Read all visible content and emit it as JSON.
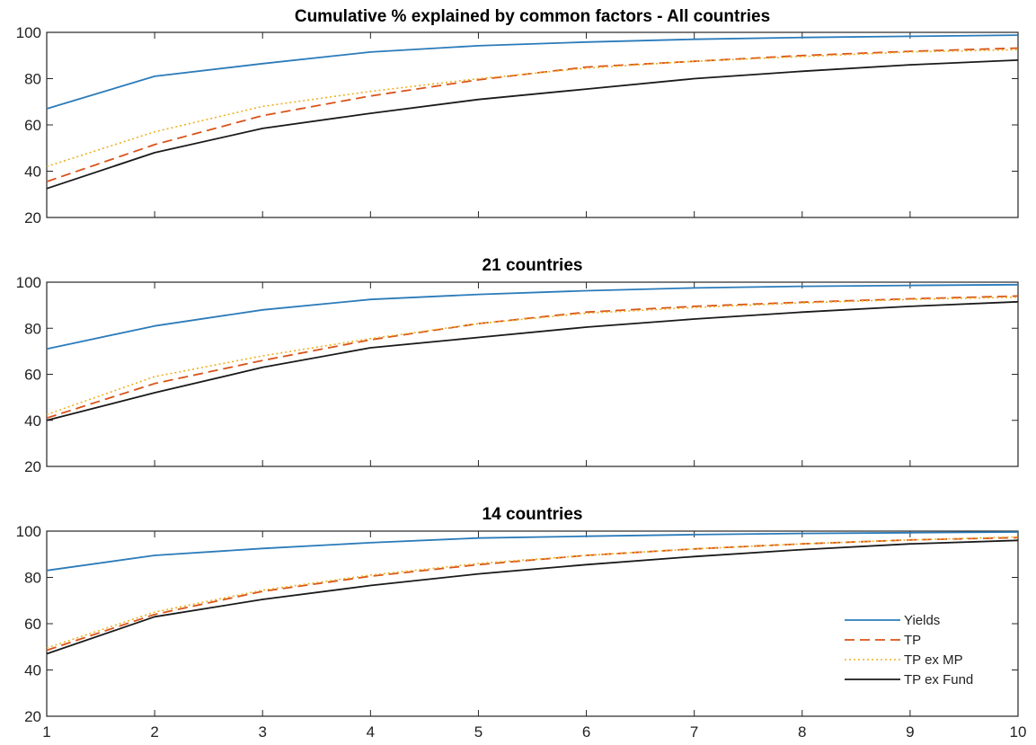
{
  "chart_data": [
    {
      "type": "line",
      "title": "Cumulative % explained by common factors - All countries",
      "x": [
        1,
        2,
        3,
        4,
        5,
        6,
        7,
        8,
        9,
        10
      ],
      "xlim": [
        1,
        10
      ],
      "ylim": [
        20,
        100
      ],
      "yticks": [
        20,
        40,
        60,
        80,
        100
      ],
      "show_xtick_labels": false,
      "grid": false,
      "series": [
        {
          "name": "Yields",
          "values": [
            67,
            81,
            86.5,
            91.5,
            94.2,
            95.8,
            97,
            97.8,
            98.3,
            98.8
          ],
          "color": "#2b7bba",
          "dash": "solid"
        },
        {
          "name": "TP",
          "values": [
            35.5,
            51.5,
            64,
            72.5,
            79.5,
            85,
            87.5,
            90,
            91.8,
            93.2
          ],
          "color": "#d95319",
          "dash": "dashed"
        },
        {
          "name": "TP ex MP",
          "values": [
            42,
            57,
            68,
            74.5,
            80,
            84.5,
            87.5,
            89.5,
            91.5,
            92.5
          ],
          "color": "#edb120",
          "dash": "dotted"
        },
        {
          "name": "TP ex Fund",
          "values": [
            32.5,
            48,
            58.5,
            65,
            71,
            75.5,
            80,
            83.2,
            86,
            88
          ]
        }
      ]
    },
    {
      "type": "line",
      "title": "21 countries",
      "x": [
        1,
        2,
        3,
        4,
        5,
        6,
        7,
        8,
        9,
        10
      ],
      "xlim": [
        1,
        10
      ],
      "ylim": [
        20,
        100
      ],
      "yticks": [
        20,
        40,
        60,
        80,
        100
      ],
      "show_xtick_labels": false,
      "grid": false,
      "series": [
        {
          "name": "Yields",
          "values": [
            71,
            81,
            88,
            92.5,
            94.7,
            96.3,
            97.5,
            98.2,
            98.6,
            98.9
          ],
          "color": "#2b7bba",
          "dash": "solid"
        },
        {
          "name": "TP",
          "values": [
            41,
            56,
            66,
            75,
            82,
            87,
            89.5,
            91.3,
            92.8,
            94
          ],
          "color": "#d95319",
          "dash": "dashed"
        },
        {
          "name": "TP ex MP",
          "values": [
            42.5,
            59,
            68,
            75.5,
            82,
            86.5,
            89,
            91,
            92.5,
            93.5
          ],
          "color": "#edb120",
          "dash": "dotted"
        },
        {
          "name": "TP ex Fund",
          "values": [
            40,
            52,
            63,
            71.5,
            76,
            80.5,
            84,
            87,
            89.5,
            91.5
          ]
        }
      ]
    },
    {
      "type": "line",
      "title": "14 countries",
      "x": [
        1,
        2,
        3,
        4,
        5,
        6,
        7,
        8,
        9,
        10
      ],
      "xlim": [
        1,
        10
      ],
      "ylim": [
        20,
        100
      ],
      "yticks": [
        20,
        40,
        60,
        80,
        100
      ],
      "xticks": [
        1,
        2,
        3,
        4,
        5,
        6,
        7,
        8,
        9,
        10
      ],
      "show_xtick_labels": true,
      "grid": false,
      "legend": {
        "position": "bottom-right"
      },
      "series": [
        {
          "name": "Yields",
          "values": [
            83,
            89.5,
            92.5,
            95,
            97,
            97.8,
            98.5,
            99,
            99.3,
            99.6
          ],
          "color": "#2b7bba",
          "dash": "solid"
        },
        {
          "name": "TP",
          "values": [
            48.5,
            64,
            74,
            80.5,
            85.5,
            89.5,
            92.3,
            94.5,
            96.2,
            97.2
          ],
          "color": "#d95319",
          "dash": "dashed"
        },
        {
          "name": "TP ex MP",
          "values": [
            49.5,
            65,
            74.5,
            81,
            86,
            89.5,
            92.3,
            94.5,
            96.2,
            97.5
          ],
          "color": "#edb120",
          "dash": "dotted"
        },
        {
          "name": "TP ex Fund",
          "values": [
            47,
            63,
            70.5,
            76.5,
            81.5,
            85.5,
            89,
            92,
            94.5,
            96
          ]
        }
      ]
    }
  ]
}
